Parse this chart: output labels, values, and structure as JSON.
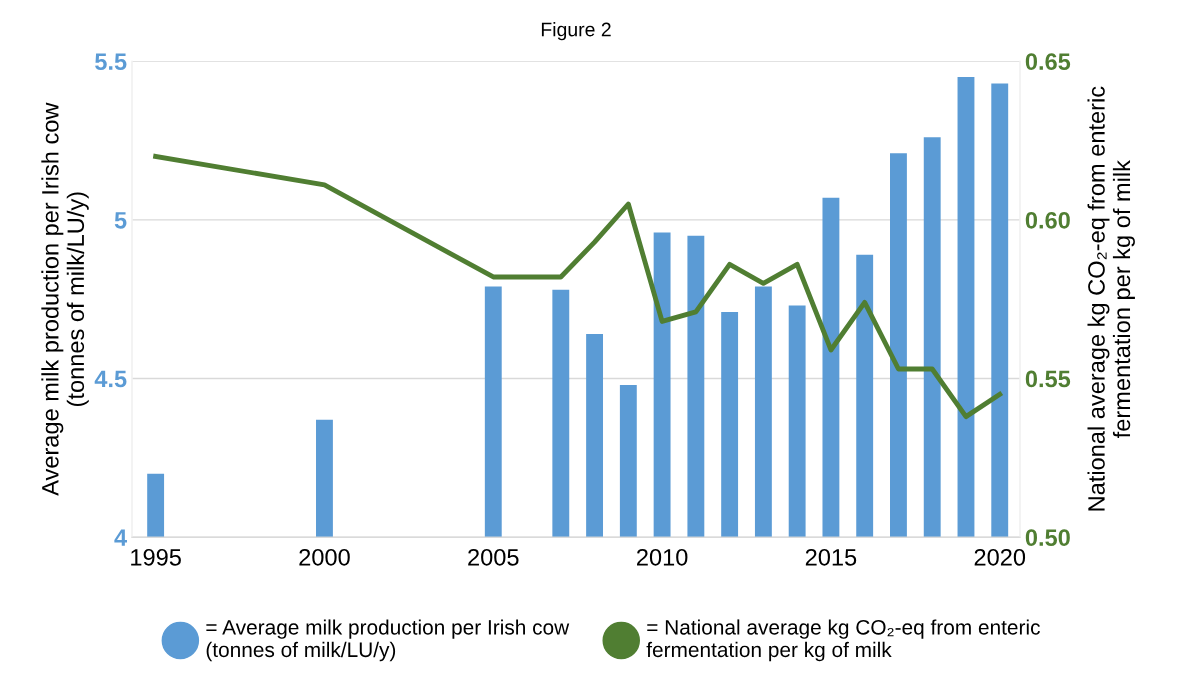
{
  "chart_data": {
    "type": "bar",
    "title": "Figure 2",
    "ylabel": "Average milk production per Irish cow\n(tonnes of milk/LU/y)",
    "y2label": "National average kg CO₂-eq from enteric\nfermentation per kg of milk",
    "x": [
      1995,
      2000,
      2005,
      2007,
      2008,
      2009,
      2010,
      2011,
      2012,
      2013,
      2014,
      2015,
      2016,
      2017,
      2018,
      2019,
      2020
    ],
    "series": [
      {
        "name": "= Average milk production per Irish cow\n(tonnes of milk/LU/y)",
        "color": "#5b9bd5",
        "values": [
          4.2,
          4.37,
          4.79,
          4.78,
          4.64,
          4.48,
          4.96,
          4.95,
          4.71,
          4.79,
          4.73,
          5.07,
          4.89,
          5.21,
          5.26,
          5.45,
          5.43
        ]
      },
      {
        "name": "= National average kg CO₂-eq from enteric\nfermentation per kg of milk",
        "type": "line",
        "axis": "y2",
        "color": "#507e32",
        "values": [
          0.62,
          0.611,
          0.582,
          0.582,
          0.593,
          0.605,
          0.568,
          0.571,
          0.586,
          0.58,
          0.586,
          0.559,
          0.574,
          0.553,
          0.553,
          0.538,
          0.545
        ]
      }
    ],
    "xlim": [
      1994.3,
      2020.6
    ],
    "xticks": [
      1995,
      2000,
      2005,
      2010,
      2015,
      2020
    ],
    "ylim": [
      4,
      5.5
    ],
    "yticks": [
      4,
      4.5,
      5,
      5.5
    ],
    "y2lim": [
      0.5,
      0.65
    ],
    "y2ticks": [
      {
        "value": 0.5,
        "label": "0.50"
      },
      {
        "value": 0.55,
        "label": "0.55"
      },
      {
        "value": 0.6,
        "label": "0.60"
      },
      {
        "value": 0.65,
        "label": "0.65"
      }
    ],
    "grid": "y",
    "legend": "bottom",
    "marker": "none",
    "line_style": "solid"
  }
}
